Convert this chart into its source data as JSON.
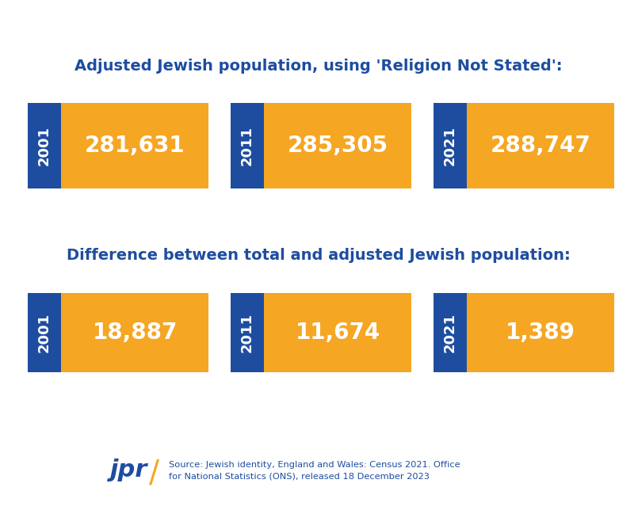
{
  "background_color": "#ffffff",
  "blue_color": "#1e4da0",
  "gold_color": "#f5a623",
  "title1": "Adjusted Jewish population, using 'Religion Not Stated':",
  "title2": "Difference between total and adjusted Jewish population:",
  "section1": [
    {
      "year": "2001",
      "value": "281,631"
    },
    {
      "year": "2011",
      "value": "285,305"
    },
    {
      "year": "2021",
      "value": "288,747"
    }
  ],
  "section2": [
    {
      "year": "2001",
      "value": "18,887"
    },
    {
      "year": "2011",
      "value": "11,674"
    },
    {
      "year": "2021",
      "value": "1,389"
    }
  ],
  "source_text": "Source: Jewish identity, England and Wales: Census 2021. Office\nfor National Statistics (ONS), released 18 December 2023",
  "jpr_color": "#1e4da0",
  "jpr_slash_color": "#f5a623",
  "title1_color": "#1e4da0",
  "title2_color": "#1e4da0",
  "fig_width": 8.05,
  "fig_height": 6.44,
  "dpi": 100
}
